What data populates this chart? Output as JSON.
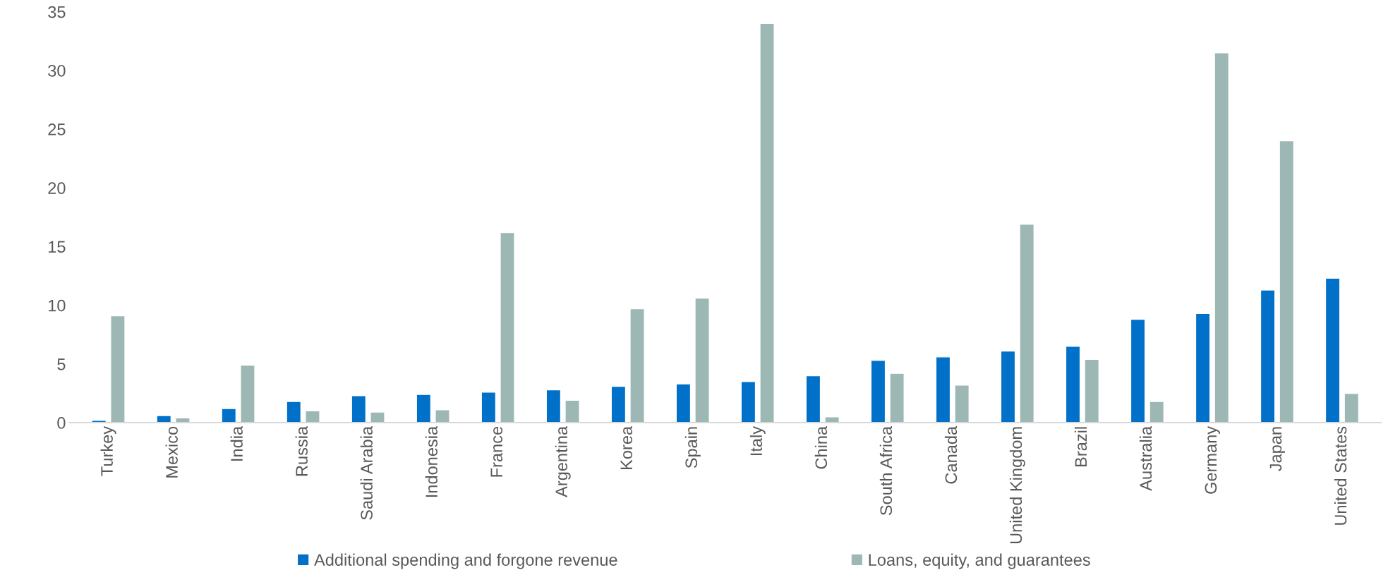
{
  "chart_data": {
    "type": "bar",
    "categories": [
      "Turkey",
      "Mexico",
      "India",
      "Russia",
      "Saudi Arabia",
      "Indonesia",
      "France",
      "Argentina",
      "Korea",
      "Spain",
      "Italy",
      "China",
      "South Africa",
      "Canada",
      "United Kingdom",
      "Brazil",
      "Australia",
      "Germany",
      "Japan",
      "United States"
    ],
    "series": [
      {
        "name": "Additional spending and forgone revenue",
        "color": "#0070c8",
        "values": [
          0.2,
          0.6,
          1.2,
          1.8,
          2.3,
          2.4,
          2.6,
          2.8,
          3.1,
          3.3,
          3.5,
          4.0,
          5.3,
          5.6,
          6.1,
          6.5,
          8.8,
          9.3,
          11.3,
          12.3
        ]
      },
      {
        "name": "Loans, equity, and guarantees",
        "color": "#9db8b4",
        "values": [
          9.1,
          0.4,
          4.9,
          1.0,
          0.9,
          1.1,
          16.2,
          1.9,
          9.7,
          10.6,
          34.0,
          0.5,
          4.2,
          3.2,
          16.9,
          5.4,
          1.8,
          31.5,
          24.0,
          2.5
        ]
      }
    ],
    "ylim": [
      0,
      35
    ],
    "yticks": [
      0,
      5,
      10,
      15,
      20,
      25,
      30,
      35
    ],
    "grid": false,
    "legend": "bottom"
  }
}
